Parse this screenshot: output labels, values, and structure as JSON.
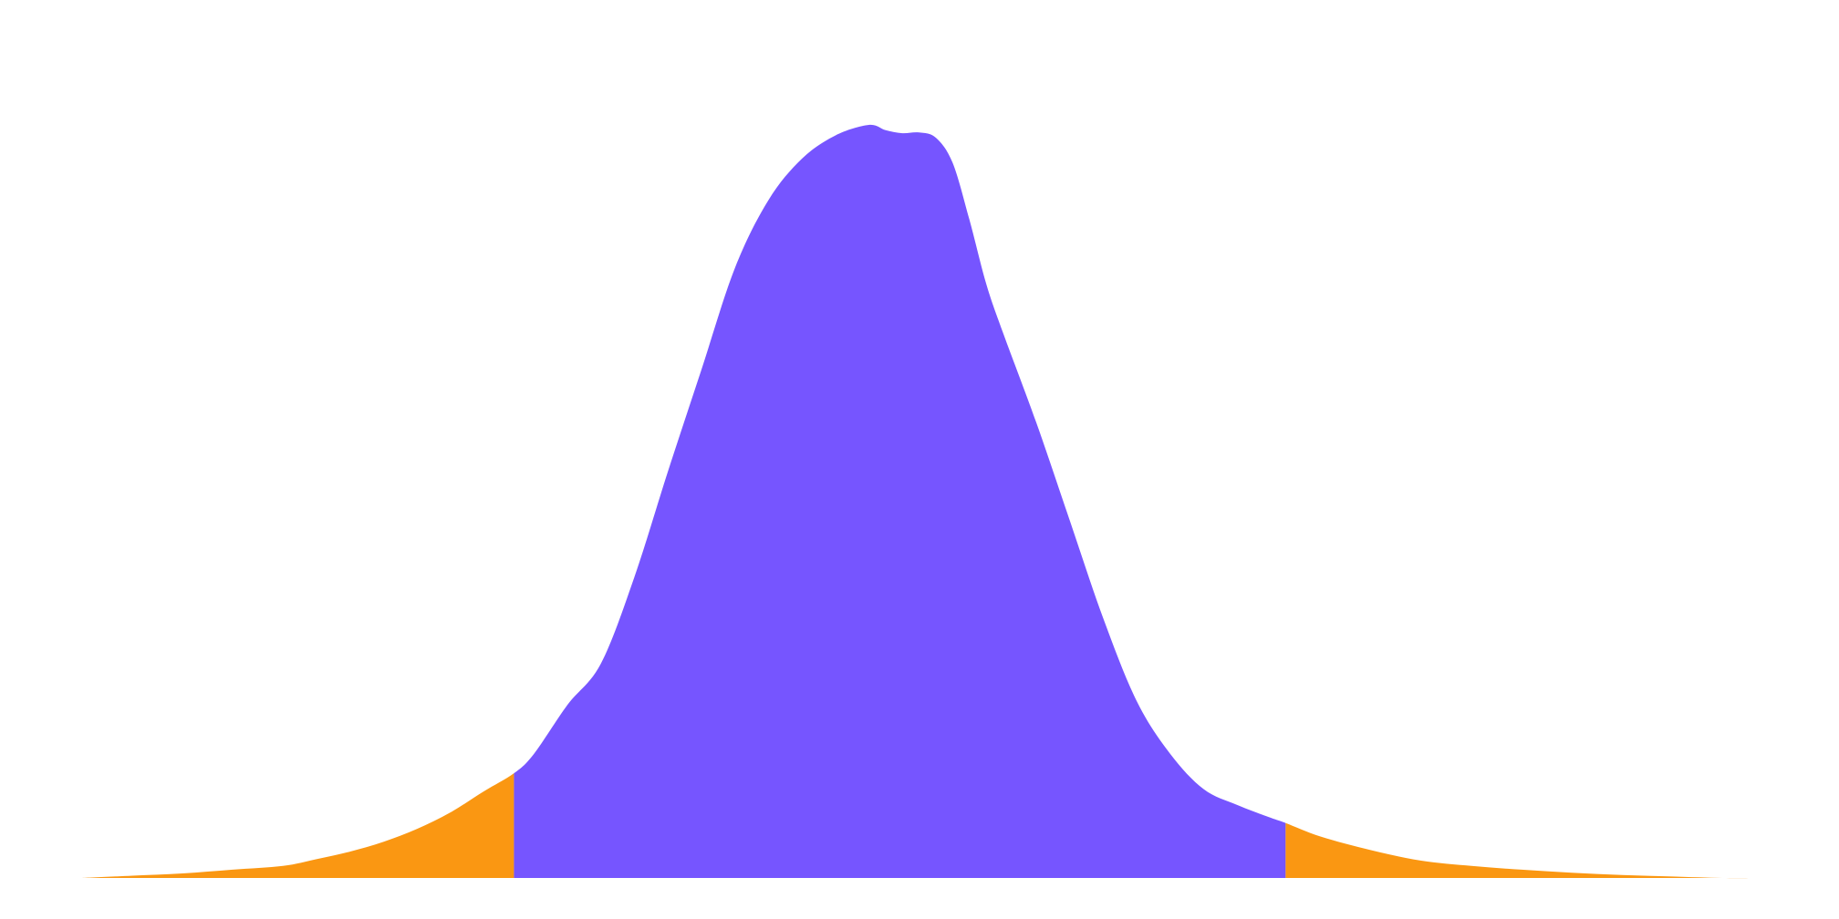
{
  "chart_data": {
    "type": "area",
    "title": "",
    "xlabel": "",
    "ylabel": "",
    "grid": false,
    "legend": "none",
    "xlim": [
      0,
      1
    ],
    "ylim": [
      0,
      1
    ],
    "colors": {
      "center": "#7655FF",
      "tails": "#FA9712",
      "background": "#FFFFFF"
    },
    "regions": [
      {
        "name": "lower-tail",
        "x_range": [
          0,
          0.258
        ]
      },
      {
        "name": "central",
        "x_range": [
          0.258,
          0.719
        ]
      },
      {
        "name": "upper-tail",
        "x_range": [
          0.719,
          1
        ]
      }
    ],
    "x": [
      0.0,
      0.03,
      0.06,
      0.09,
      0.12,
      0.14,
      0.16,
      0.18,
      0.2,
      0.22,
      0.24,
      0.258,
      0.27,
      0.29,
      0.31,
      0.33,
      0.35,
      0.37,
      0.39,
      0.41,
      0.43,
      0.45,
      0.47,
      0.48,
      0.49,
      0.5,
      0.51,
      0.52,
      0.53,
      0.54,
      0.55,
      0.57,
      0.59,
      0.61,
      0.63,
      0.65,
      0.67,
      0.69,
      0.71,
      0.719,
      0.74,
      0.77,
      0.8,
      0.83,
      0.86,
      0.89,
      0.92,
      0.95,
      0.98,
      1.0
    ],
    "values": [
      0.0,
      0.003,
      0.006,
      0.011,
      0.016,
      0.025,
      0.035,
      0.048,
      0.065,
      0.087,
      0.115,
      0.139,
      0.165,
      0.23,
      0.285,
      0.4,
      0.54,
      0.675,
      0.81,
      0.9,
      0.955,
      0.986,
      1.0,
      0.993,
      0.989,
      0.99,
      0.983,
      0.95,
      0.875,
      0.79,
      0.725,
      0.605,
      0.475,
      0.345,
      0.235,
      0.165,
      0.118,
      0.097,
      0.08,
      0.073,
      0.055,
      0.037,
      0.023,
      0.016,
      0.011,
      0.007,
      0.004,
      0.002,
      0.0,
      0.0
    ]
  }
}
